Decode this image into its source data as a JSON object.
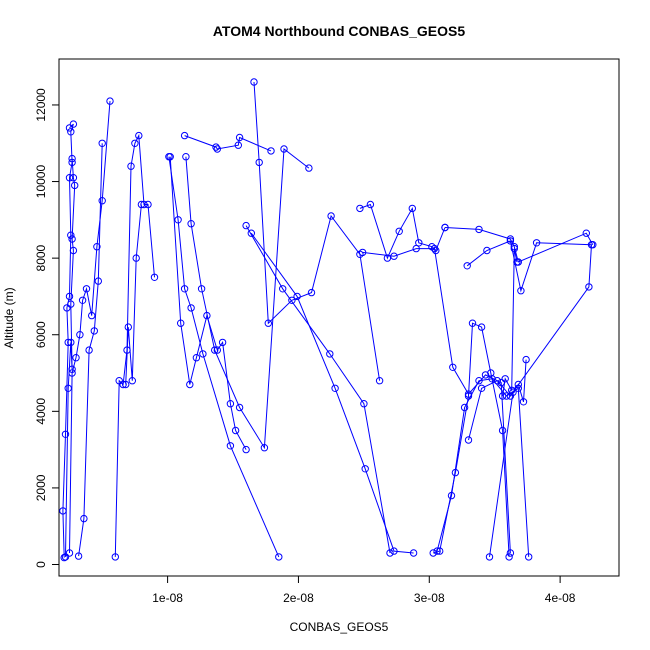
{
  "chart_data": {
    "type": "line",
    "title": "ATOM4 Northbound CONBAS_GEOS5",
    "xlabel": "CONBAS_GEOS5",
    "ylabel": "Altitude (m)",
    "xlim": [
      1.7e-09,
      4.45e-08
    ],
    "ylim": [
      -300,
      13200
    ],
    "xticks": [
      1e-08,
      2e-08,
      3e-08,
      4e-08
    ],
    "xtick_labels": [
      "1e-08",
      "2e-08",
      "3e-08",
      "4e-08"
    ],
    "yticks": [
      0,
      2000,
      4000,
      6000,
      8000,
      10000,
      12000
    ],
    "ytick_labels": [
      "0",
      "2000",
      "4000",
      "6000",
      "8000",
      "10000",
      "12000"
    ],
    "grid": false,
    "series_color": "#0000ff",
    "markers": "open-circle",
    "series": [
      {
        "x": [
          2.1e-09,
          2e-09,
          2.2e-09,
          2.4e-09,
          2.3e-09,
          2.5e-09,
          2.6e-09,
          2.5e-09,
          2.7e-09,
          2.6e-09,
          2.8e-09,
          2.5e-09
        ],
        "y": [
          180,
          1400,
          3400,
          5800,
          6700,
          7000,
          8600,
          10100,
          10500,
          11300,
          11500,
          11400
        ]
      },
      {
        "x": [
          2.2e-09,
          2.4e-09,
          2.6e-09,
          2.7e-09,
          2.6e-09,
          2.8e-09,
          2.7e-09,
          2.9e-09,
          2.8e-09,
          2.7e-09
        ],
        "y": [
          200,
          4600,
          5800,
          5100,
          6800,
          8200,
          8500,
          9900,
          10100,
          10600
        ]
      },
      {
        "x": [
          2.5e-09,
          2.7e-09,
          3e-09,
          3.3e-09,
          3.5e-09,
          3.8e-09,
          4.2e-09,
          4.6e-09,
          5e-09,
          5.6e-09
        ],
        "y": [
          300,
          5000,
          5400,
          6000,
          6900,
          7200,
          6500,
          8300,
          9500,
          12100
        ]
      },
      {
        "x": [
          3.2e-09,
          3.6e-09,
          4e-09,
          4.4e-09,
          4.7e-09,
          5e-09
        ],
        "y": [
          220,
          1200,
          5600,
          6100,
          7400,
          11000
        ]
      },
      {
        "x": [
          6e-09,
          6.3e-09,
          6.6e-09,
          6.9e-09,
          7.2e-09,
          7.5e-09,
          7.8e-09,
          8.2e-09,
          8.5e-09,
          9e-09
        ],
        "y": [
          200,
          4800,
          4700,
          5600,
          10400,
          11000,
          11200,
          9400,
          9400,
          7500
        ]
      },
      {
        "x": [
          6.8e-09,
          7e-09,
          7.3e-09,
          7.6e-09,
          8e-09
        ],
        "y": [
          4700,
          6200,
          4800,
          8000,
          9400
        ]
      },
      {
        "x": [
          1.02e-08,
          1.1e-08,
          1.17e-08,
          1.22e-08,
          1.3e-08,
          1.38e-08,
          1.42e-08,
          1.48e-08,
          1.52e-08,
          1.6e-08
        ],
        "y": [
          10650,
          6300,
          4700,
          5400,
          6500,
          5600,
          5800,
          4200,
          3500,
          3000
        ]
      },
      {
        "x": [
          1.01e-08,
          1.08e-08,
          1.13e-08,
          1.18e-08,
          1.27e-08,
          1.48e-08,
          1.85e-08
        ],
        "y": [
          10650,
          9000,
          7200,
          6700,
          5500,
          3100,
          200
        ]
      },
      {
        "x": [
          1.14e-08,
          1.18e-08,
          1.26e-08,
          1.36e-08,
          1.55e-08,
          1.74e-08,
          1.89e-08,
          2.08e-08
        ],
        "y": [
          10650,
          8900,
          7200,
          5600,
          4100,
          3050,
          10850,
          10350
        ]
      },
      {
        "x": [
          1.13e-08,
          1.37e-08,
          1.38e-08,
          1.54e-08,
          1.55e-08,
          1.79e-08
        ],
        "y": [
          11200,
          10900,
          10850,
          10950,
          11150,
          10800
        ]
      },
      {
        "x": [
          1.66e-08,
          1.7e-08,
          1.77e-08,
          1.95e-08,
          2.1e-08,
          2.25e-08,
          2.47e-08,
          2.62e-08
        ],
        "y": [
          12600,
          10500,
          6300,
          6900,
          7100,
          9100,
          8100,
          4800
        ]
      },
      {
        "x": [
          1.6e-08,
          1.88e-08,
          2.24e-08,
          2.5e-08,
          2.7e-08
        ],
        "y": [
          8850,
          7200,
          5500,
          4200,
          300
        ]
      },
      {
        "x": [
          1.64e-08,
          1.99e-08,
          2.28e-08,
          2.51e-08,
          2.73e-08,
          2.88e-08
        ],
        "y": [
          8650,
          7000,
          4600,
          2500,
          350,
          300
        ]
      },
      {
        "x": [
          2.47e-08,
          2.55e-08,
          2.68e-08,
          2.77e-08,
          2.87e-08,
          2.92e-08,
          3.02e-08,
          3.05e-08,
          3.12e-08
        ],
        "y": [
          9300,
          9400,
          8000,
          8700,
          9300,
          8400,
          8300,
          8200,
          8800
        ]
      },
      {
        "x": [
          2.49e-08,
          2.73e-08,
          2.9e-08,
          3.04e-08,
          3.18e-08,
          3.3e-08,
          3.43e-08,
          3.55e-08,
          3.62e-08
        ],
        "y": [
          8150,
          8050,
          8250,
          8250,
          5150,
          4450,
          4950,
          4750,
          300
        ]
      },
      {
        "x": [
          3.03e-08,
          3.08e-08,
          3.2e-08,
          3.3e-08,
          3.33e-08,
          3.4e-08,
          3.47e-08,
          3.56e-08,
          3.61e-08
        ],
        "y": [
          300,
          350,
          2400,
          4400,
          6300,
          6200,
          5000,
          3500,
          200
        ]
      },
      {
        "x": [
          3.06e-08,
          3.17e-08,
          3.27e-08,
          3.38e-08,
          3.48e-08,
          3.59e-08,
          3.68e-08,
          3.76e-08
        ],
        "y": [
          350,
          1800,
          4100,
          4800,
          4850,
          4400,
          4600,
          200
        ]
      },
      {
        "x": [
          3.3e-08,
          3.4e-08,
          3.52e-08,
          3.62e-08,
          3.68e-08,
          3.72e-08,
          3.74e-08
        ],
        "y": [
          3250,
          4600,
          4800,
          4400,
          4700,
          4250,
          5350
        ]
      },
      {
        "x": [
          3.12e-08,
          3.38e-08,
          3.62e-08,
          3.65e-08,
          3.68e-08,
          4.2e-08,
          4.25e-08
        ],
        "y": [
          8800,
          8750,
          8500,
          8300,
          7900,
          8650,
          8350
        ]
      },
      {
        "x": [
          3.29e-08,
          3.44e-08,
          3.62e-08,
          3.7e-08,
          3.82e-08,
          4.24e-08,
          4.22e-08,
          3.64e-08,
          3.46e-08
        ],
        "y": [
          7800,
          8200,
          8450,
          7150,
          8400,
          8350,
          7250,
          4500,
          200
        ]
      },
      {
        "x": [
          3.56e-08,
          3.58e-08,
          3.63e-08,
          3.65e-08,
          3.67e-08
        ],
        "y": [
          4400,
          4850,
          4550,
          8250,
          7900
        ]
      }
    ]
  }
}
